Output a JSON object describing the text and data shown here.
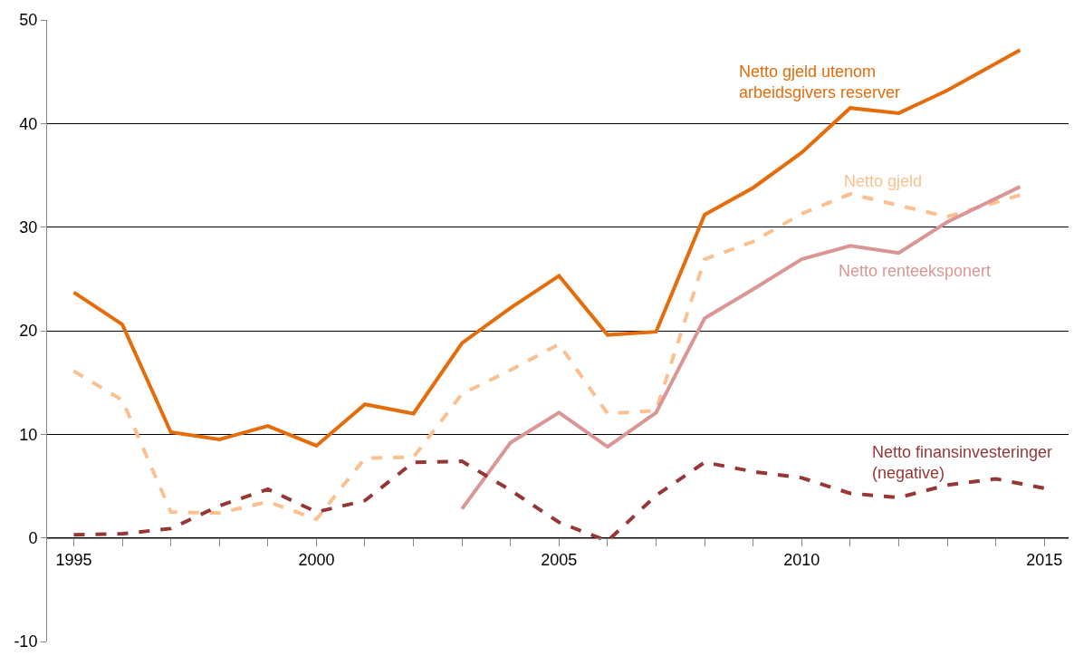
{
  "chart_data": {
    "type": "line",
    "series": [
      {
        "name": "Netto gjeld utenom arbeidsgivers reserver",
        "color": "#e46c0a",
        "line_style": "solid",
        "x": [
          1995,
          1996,
          1997,
          1998,
          1999,
          2000,
          2001,
          2002,
          2003,
          2004,
          2005,
          2006,
          2007,
          2008,
          2009,
          2010,
          2011,
          2012,
          2013,
          2014.5
        ],
        "values": [
          23.7,
          20.6,
          10.2,
          9.5,
          10.8,
          8.9,
          12.9,
          12.0,
          18.8,
          22.2,
          25.3,
          19.6,
          19.9,
          31.2,
          33.8,
          37.2,
          41.5,
          41.0,
          43.2,
          47.1
        ]
      },
      {
        "name": "Netto gjeld",
        "color": "#fac090",
        "line_style": "dashed",
        "x": [
          1995,
          1996,
          1997,
          1998,
          1999,
          2000,
          2001,
          2002,
          2003,
          2004,
          2005,
          2006,
          2007,
          2008,
          2009,
          2010,
          2011,
          2012,
          2013,
          2014.5
        ],
        "values": [
          16.1,
          13.3,
          2.5,
          2.4,
          3.5,
          1.8,
          7.7,
          7.8,
          13.9,
          16.2,
          18.7,
          12.0,
          12.3,
          26.9,
          28.6,
          31.3,
          33.2,
          32.1,
          31.0,
          33.1
        ]
      },
      {
        "name": "Netto renteeksponert",
        "color": "#d99694",
        "line_style": "solid",
        "x": [
          2003,
          2004,
          2005,
          2006,
          2007,
          2008,
          2009,
          2010,
          2011,
          2012,
          2013,
          2014.5
        ],
        "values": [
          2.8,
          9.2,
          12.1,
          8.8,
          12.1,
          21.2,
          24.0,
          26.9,
          28.2,
          27.5,
          30.5,
          33.9
        ]
      },
      {
        "name": "Netto finansinvesteringer (negative)",
        "color": "#953735",
        "line_style": "dashed",
        "x": [
          1995,
          1996,
          1997,
          1998,
          1999,
          2000,
          2001,
          2002,
          2003,
          2004,
          2005,
          2006,
          2007,
          2008,
          2009,
          2010,
          2011,
          2012,
          2013,
          2014,
          2015
        ],
        "values": [
          0.3,
          0.4,
          0.9,
          3.1,
          4.7,
          2.5,
          3.6,
          7.3,
          7.4,
          4.6,
          1.5,
          -0.3,
          4.1,
          7.3,
          6.4,
          5.8,
          4.3,
          3.9,
          5.1,
          5.7,
          4.8
        ]
      }
    ],
    "xlim": [
      1994.45,
      2015.5
    ],
    "xticks": [
      1995,
      {
        "value": 1996,
        "label": null
      },
      {
        "value": 1997,
        "label": null
      },
      {
        "value": 1998,
        "label": null
      },
      {
        "value": 1999,
        "label": null
      },
      2000,
      {
        "value": 2001,
        "label": null
      },
      {
        "value": 2002,
        "label": null
      },
      {
        "value": 2003,
        "label": null
      },
      {
        "value": 2004,
        "label": null
      },
      2005,
      {
        "value": 2006,
        "label": null
      },
      {
        "value": 2007,
        "label": null
      },
      {
        "value": 2008,
        "label": null
      },
      {
        "value": 2009,
        "label": null
      },
      2010,
      {
        "value": 2011,
        "label": null
      },
      {
        "value": 2012,
        "label": null
      },
      {
        "value": 2013,
        "label": null
      },
      {
        "value": 2014,
        "label": null
      },
      2015
    ],
    "ylim": [
      -10,
      50
    ],
    "yticks": [
      -10,
      0,
      10,
      20,
      30,
      40,
      50
    ],
    "grid": "y",
    "legend": false,
    "marker": "none"
  }
}
